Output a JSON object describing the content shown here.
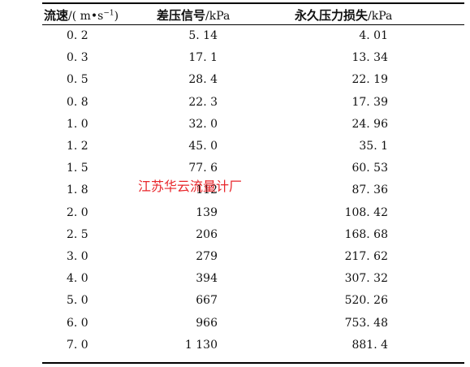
{
  "table": {
    "headers": [
      {
        "label": "流速",
        "unit_prefix": "/(",
        "unit_main": " m•s",
        "unit_sup": "−1",
        "unit_suffix": ")"
      },
      {
        "label": "差压信号",
        "unit": "/kPa"
      },
      {
        "label": "永久压力损失",
        "unit": "/kPa"
      }
    ],
    "rows": [
      [
        "0. 2",
        "5. 14",
        "4. 01"
      ],
      [
        "0. 3",
        "17. 1",
        "13. 34"
      ],
      [
        "0. 5",
        "28. 4",
        "22. 19"
      ],
      [
        "0. 8",
        "22. 3",
        "17. 39"
      ],
      [
        "1. 0",
        "32. 0",
        "24. 96"
      ],
      [
        "1. 2",
        "45. 0",
        "35. 1"
      ],
      [
        "1. 5",
        "77. 6",
        "60. 53"
      ],
      [
        "1. 8",
        "112",
        "87. 36"
      ],
      [
        "2. 0",
        "139",
        "108. 42"
      ],
      [
        "2. 5",
        "206",
        "168. 68"
      ],
      [
        "3. 0",
        "279",
        "217. 62"
      ],
      [
        "4. 0",
        "394",
        "307. 32"
      ],
      [
        "5. 0",
        "667",
        "520. 26"
      ],
      [
        "6. 0",
        "966",
        "753. 48"
      ],
      [
        "7. 0",
        "1 130",
        "881. 4"
      ]
    ]
  },
  "watermark": {
    "text": "江苏华云流量计厂",
    "color": "#e8262b"
  }
}
